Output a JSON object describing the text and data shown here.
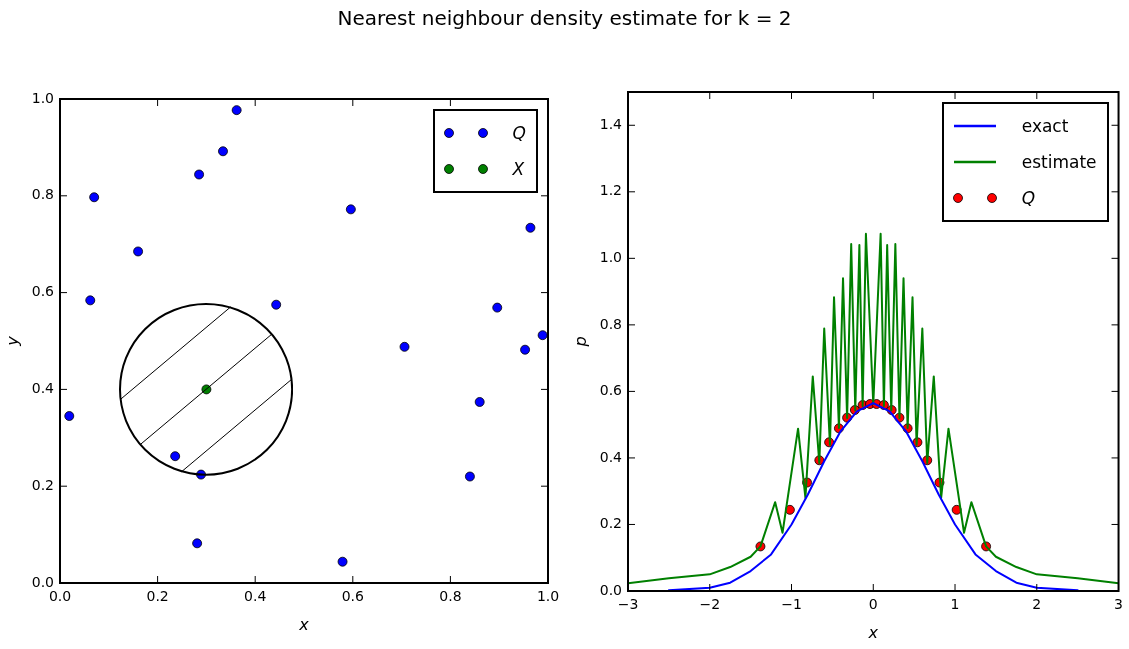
{
  "chart_data": [
    {
      "type": "scatter",
      "title": "Nearest neighbour density estimate for k = 2",
      "xlabel": "x",
      "ylabel": "y",
      "marker": "circle",
      "legend": "top right",
      "xlim": [
        0,
        1
      ],
      "ylim": [
        0,
        1
      ],
      "xticks": [
        {
          "value": 0,
          "label": "0.0"
        },
        {
          "value": 0.2,
          "label": "0.2"
        },
        {
          "value": 0.4,
          "label": "0.4"
        },
        {
          "value": 0.6,
          "label": "0.6"
        },
        {
          "value": 0.8,
          "label": "0.8"
        },
        {
          "value": 1,
          "label": "1.0"
        }
      ],
      "yticks": [
        {
          "value": 0,
          "label": "0.0"
        },
        {
          "value": 0.2,
          "label": "0.2"
        },
        {
          "value": 0.4,
          "label": "0.4"
        },
        {
          "value": 0.6,
          "label": "0.6"
        },
        {
          "value": 0.8,
          "label": "0.8"
        },
        {
          "value": 1,
          "label": "1.0"
        }
      ],
      "series": [
        {
          "name": "Q",
          "color": "#0000ff",
          "x": [
            0.019,
            0.07,
            0.062,
            0.16,
            0.285,
            0.334,
            0.362,
            0.236,
            0.289,
            0.281,
            0.596,
            0.443,
            0.706,
            0.86,
            0.84,
            0.896,
            0.964,
            0.953,
            0.989,
            0.579
          ],
          "values": [
            0.345,
            0.797,
            0.584,
            0.685,
            0.844,
            0.892,
            0.977,
            0.262,
            0.224,
            0.082,
            0.772,
            0.575,
            0.488,
            0.374,
            0.22,
            0.569,
            0.734,
            0.482,
            0.512,
            0.044
          ]
        },
        {
          "name": "X",
          "color": "#008000",
          "x": [
            0.3
          ],
          "values": [
            0.4
          ]
        }
      ]
    },
    {
      "type": "line",
      "xlabel": "x",
      "ylabel": "p",
      "legend": "top right",
      "xlim": [
        -3,
        3
      ],
      "ylim": [
        0,
        1.5
      ],
      "xticks": [
        {
          "value": -3,
          "label": "−3"
        },
        {
          "value": -2,
          "label": "−2"
        },
        {
          "value": -1,
          "label": "−1"
        },
        0,
        1,
        2,
        3
      ],
      "yticks": [
        {
          "value": 0,
          "label": "0.0"
        },
        {
          "value": 0.2,
          "label": "0.2"
        },
        {
          "value": 0.4,
          "label": "0.4"
        },
        {
          "value": 0.6,
          "label": "0.6"
        },
        {
          "value": 0.8,
          "label": "0.8"
        },
        {
          "value": 1,
          "label": "1.0"
        },
        {
          "value": 1.2,
          "label": "1.2"
        },
        {
          "value": 1.4,
          "label": "1.4"
        }
      ],
      "series": [
        {
          "name": "exact",
          "type": "line",
          "color": "#0000ff",
          "x": [
            -2.5,
            -2,
            -1.75,
            -1.5,
            -1.25,
            -1,
            -0.8,
            -0.6,
            -0.4,
            -0.2,
            0,
            0.2,
            0.4,
            0.6,
            0.8,
            1,
            1.25,
            1.5,
            1.75,
            2,
            2.5
          ],
          "values": [
            0.002,
            0.01,
            0.025,
            0.06,
            0.11,
            0.2,
            0.29,
            0.39,
            0.48,
            0.54,
            0.565,
            0.54,
            0.48,
            0.39,
            0.29,
            0.2,
            0.11,
            0.06,
            0.025,
            0.01,
            0.002
          ]
        },
        {
          "name": "estimate",
          "type": "line",
          "color": "#008000",
          "x": [
            -3,
            -2.5,
            -2,
            -1.75,
            -1.5,
            -1.38,
            -1.2,
            -1.11,
            -0.92,
            -0.83,
            -0.74,
            -0.66,
            -0.6,
            -0.53,
            -0.48,
            -0.42,
            -0.37,
            -0.32,
            -0.27,
            -0.22,
            -0.17,
            -0.13,
            -0.09,
            0,
            0.09,
            0.13,
            0.17,
            0.22,
            0.27,
            0.32,
            0.37,
            0.42,
            0.48,
            0.53,
            0.6,
            0.66,
            0.74,
            0.83,
            0.92,
            1.11,
            1.2,
            1.38,
            1.5,
            1.75,
            2,
            2.5,
            3
          ],
          "values": [
            0.023,
            0.038,
            0.05,
            0.072,
            0.103,
            0.134,
            0.267,
            0.175,
            0.488,
            0.28,
            0.645,
            0.385,
            0.789,
            0.44,
            0.883,
            0.49,
            0.94,
            0.52,
            1.043,
            0.543,
            1.04,
            0.556,
            1.074,
            0.562,
            1.074,
            0.556,
            1.04,
            0.543,
            1.043,
            0.52,
            0.94,
            0.49,
            0.883,
            0.44,
            0.789,
            0.385,
            0.645,
            0.28,
            0.488,
            0.175,
            0.267,
            0.134,
            0.103,
            0.072,
            0.05,
            0.038,
            0.023
          ]
        },
        {
          "name": "Q",
          "type": "scatter",
          "marker": "circle",
          "color": "#ff0000",
          "x": [
            -1.38,
            -1.02,
            -0.81,
            -0.66,
            -0.54,
            -0.42,
            -0.32,
            -0.225,
            -0.13,
            -0.04,
            0.04,
            0.13,
            0.225,
            0.32,
            0.42,
            0.54,
            0.66,
            0.81,
            1.02,
            1.38
          ],
          "values": [
            0.134,
            0.244,
            0.326,
            0.393,
            0.447,
            0.489,
            0.521,
            0.544,
            0.559,
            0.562,
            0.562,
            0.559,
            0.544,
            0.521,
            0.489,
            0.447,
            0.393,
            0.326,
            0.244,
            0.134
          ]
        }
      ]
    }
  ]
}
